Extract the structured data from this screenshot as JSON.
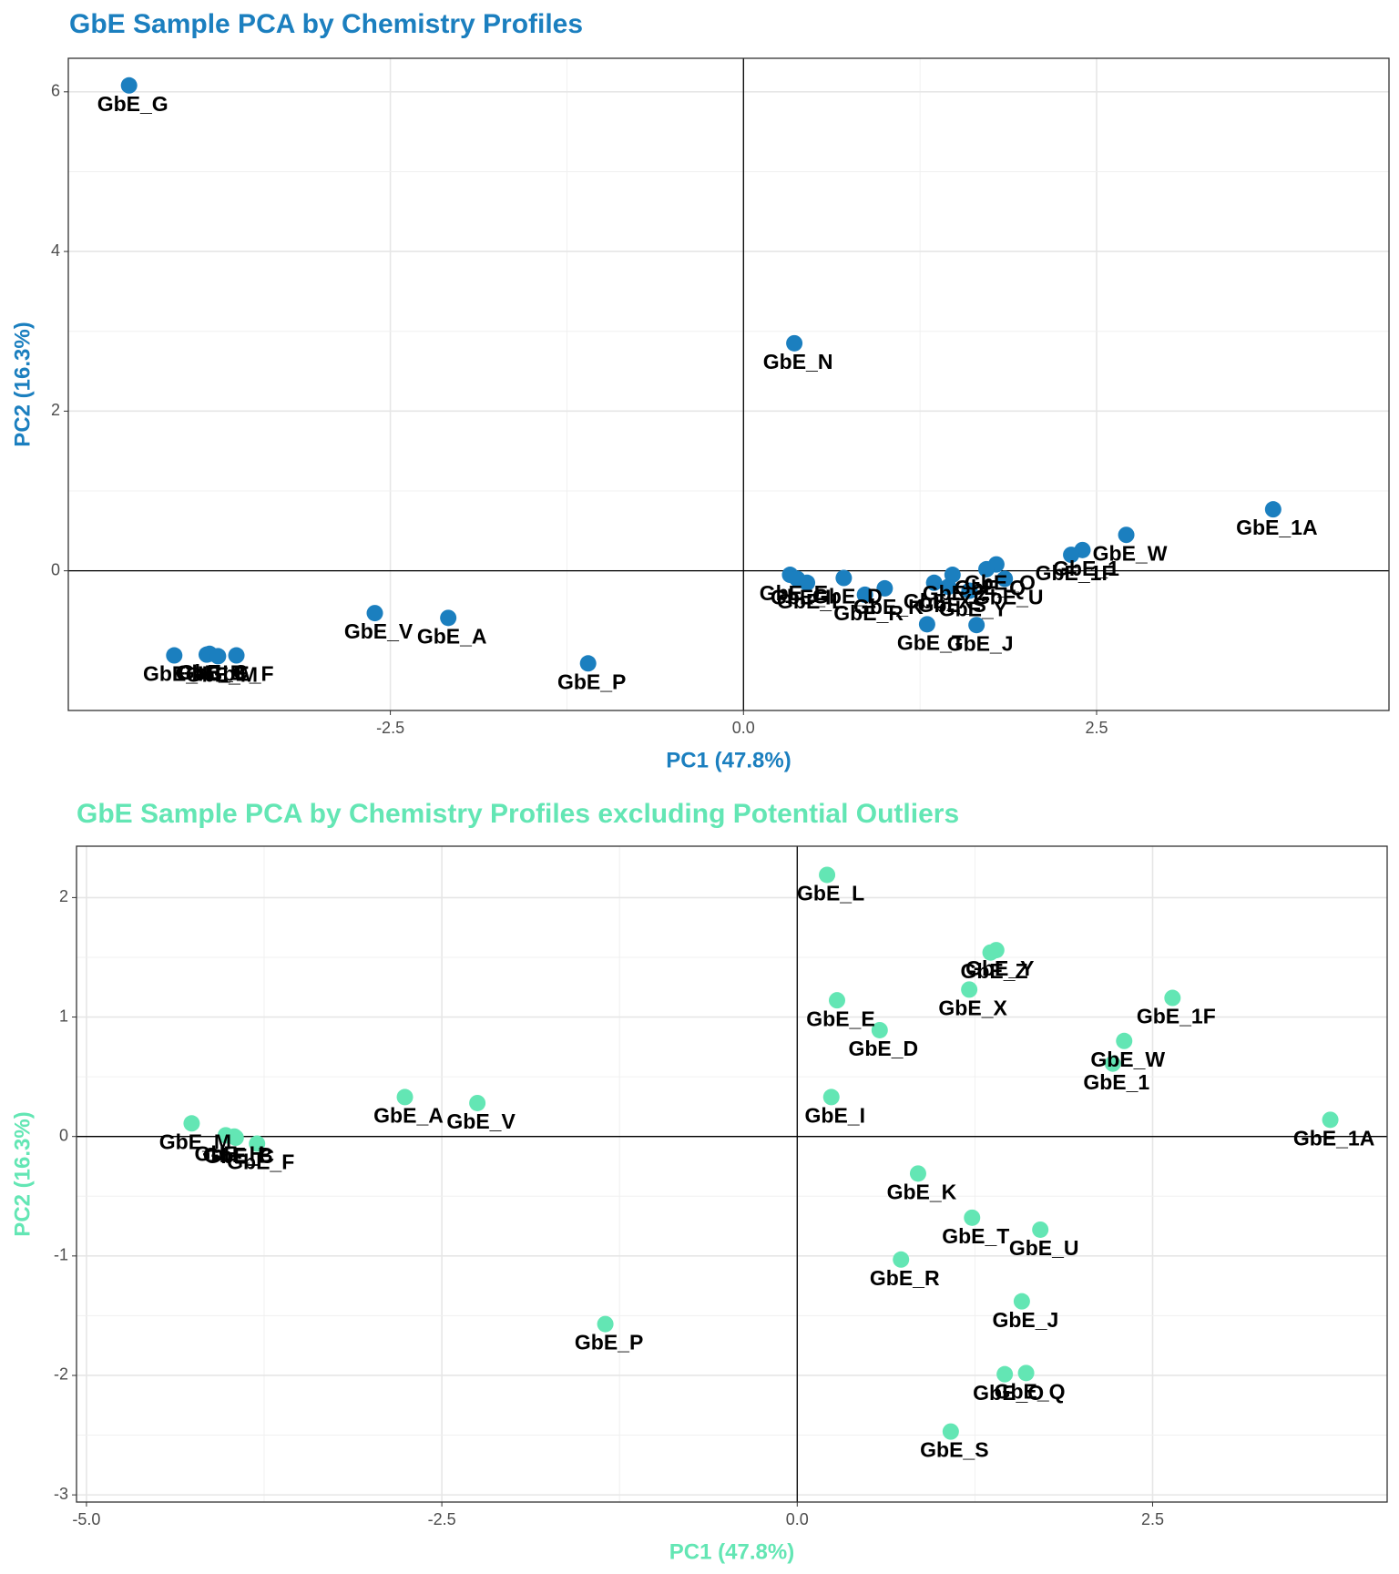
{
  "chart_data": [
    {
      "type": "scatter",
      "title": "GbE Sample PCA by Chemistry Profiles",
      "x_label": "PC1 (47.8%)",
      "y_label": "PC2 (16.3%)",
      "color": "#1b7fbf",
      "labels": [
        "GbE_1",
        "GbE_1A",
        "GbE_1F",
        "GbE_A",
        "GbE_B",
        "GbE_C",
        "GbE_D",
        "GbE_E",
        "GbE_F",
        "GbE_G",
        "GbE_H",
        "GbE_I",
        "GbE_J",
        "GbE_K",
        "GbE_L",
        "GbE_M",
        "GbE_N",
        "GbE_O",
        "GbE_P",
        "GbE_Q",
        "GbE_R",
        "GbE_S",
        "GbE_T",
        "GbE_U",
        "GbE_V",
        "GbE_W",
        "GbE_X",
        "GbE_Y",
        "GbE_Z"
      ],
      "x": [
        2.4,
        3.75,
        2.32,
        -2.09,
        -3.8,
        -3.78,
        0.71,
        0.33,
        -3.59,
        -4.35,
        -4.03,
        0.38,
        1.65,
        1.0,
        0.45,
        -3.72,
        0.36,
        1.79,
        -1.1,
        1.72,
        0.86,
        1.45,
        1.3,
        1.85,
        -2.61,
        2.71,
        1.35,
        1.6,
        1.48
      ],
      "values": [
        0.26,
        0.77,
        0.2,
        -0.59,
        -1.05,
        -1.04,
        -0.09,
        -0.05,
        -1.06,
        6.08,
        -1.06,
        -0.1,
        -0.68,
        -0.22,
        -0.15,
        -1.07,
        2.85,
        0.08,
        -1.16,
        0.02,
        -0.3,
        -0.2,
        -0.67,
        -0.1,
        -0.53,
        0.45,
        -0.15,
        -0.25,
        -0.05
      ],
      "xlim": [
        -4.78,
        4.57
      ],
      "ylim": [
        -1.75,
        6.42
      ],
      "xticks": [
        -2.5,
        {
          "value": 0,
          "label": "0.0"
        },
        2.5
      ],
      "yticks": [
        0,
        2,
        4,
        6
      ],
      "hline": 0,
      "vline": 0,
      "grid": true
    },
    {
      "type": "scatter",
      "title": "GbE Sample PCA by Chemistry Profiles excluding Potential Outliers",
      "x_label": "PC1 (47.8%)",
      "y_label": "PC2 (16.3%)",
      "color": "#63e6b4",
      "labels": [
        "GbE_L",
        "GbE_Y",
        "GbE_Z",
        "GbE_X",
        "GbE_1F",
        "GbE_E",
        "GbE_D",
        "GbE_W",
        "GbE_1",
        "GbE_1A",
        "GbE_I",
        "GbE_M",
        "GbE_H",
        "GbE_C",
        "GbE_F",
        "GbE_B",
        "GbE_A",
        "GbE_V",
        "GbE_K",
        "GbE_U",
        "GbE_R",
        "GbE_J",
        "GbE_O",
        "GbE_Q",
        "GbE_T",
        "GbE_S",
        "GbE_P"
      ],
      "x": [
        0.21,
        1.4,
        1.36,
        1.21,
        2.64,
        0.28,
        0.58,
        2.3,
        2.22,
        3.75,
        0.24,
        -4.26,
        -4.02,
        -3.95,
        -3.8,
        -3.96,
        -2.76,
        -2.25,
        0.85,
        1.71,
        0.73,
        1.58,
        1.46,
        1.61,
        1.23,
        1.08,
        -1.35
      ],
      "values": [
        2.19,
        1.56,
        1.54,
        1.23,
        1.16,
        1.14,
        0.89,
        0.8,
        0.61,
        0.14,
        0.33,
        0.11,
        0.01,
        -0.01,
        -0.06,
        0.0,
        0.33,
        0.28,
        -0.31,
        -0.78,
        -1.03,
        -1.38,
        -1.99,
        -1.98,
        -0.68,
        -2.47,
        -1.57
      ],
      "xlim": [
        -5.07,
        4.15
      ],
      "ylim": [
        -3.06,
        2.43
      ],
      "xticks": [
        {
          "value": -5,
          "label": "-5.0"
        },
        -2.5,
        {
          "value": 0,
          "label": "0.0"
        },
        2.5
      ],
      "yticks": [
        -3,
        -2,
        -1,
        0,
        1,
        2
      ],
      "hline": 0,
      "vline": 0,
      "grid": true
    }
  ]
}
